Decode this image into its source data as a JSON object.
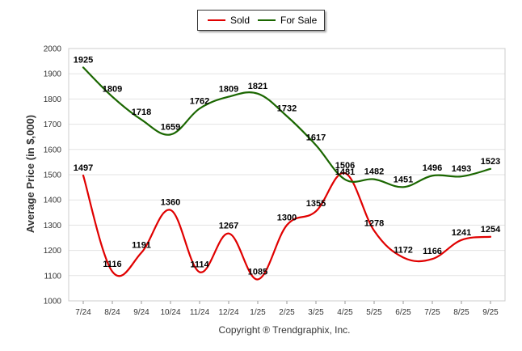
{
  "chart_data": {
    "type": "line",
    "categories": [
      "7/24",
      "8/24",
      "9/24",
      "10/24",
      "11/24",
      "12/24",
      "1/25",
      "2/25",
      "3/25",
      "4/25",
      "5/25",
      "6/25",
      "7/25",
      "8/25",
      "9/25"
    ],
    "series": [
      {
        "name": "Sold",
        "color": "#e00000",
        "values": [
          1497,
          1116,
          1191,
          1360,
          1114,
          1267,
          1085,
          1300,
          1355,
          1506,
          1278,
          1172,
          1166,
          1241,
          1254
        ]
      },
      {
        "name": "For Sale",
        "color": "#1a6600",
        "values": [
          1925,
          1809,
          1718,
          1659,
          1762,
          1809,
          1821,
          1732,
          1617,
          1481,
          1482,
          1451,
          1496,
          1493,
          1523
        ]
      }
    ],
    "title": "",
    "xlabel": "",
    "ylabel": "Average Price (in $,000)",
    "ylim": [
      1000,
      2000
    ],
    "yticks": [
      1000,
      1100,
      1200,
      1300,
      1400,
      1500,
      1600,
      1700,
      1800,
      1900,
      2000
    ],
    "grid": true,
    "legend": "top-center"
  },
  "legend": {
    "sold_label": "Sold",
    "forsale_label": "For Sale"
  },
  "footer": {
    "credit": "Copyright ® Trendgraphix, Inc."
  }
}
